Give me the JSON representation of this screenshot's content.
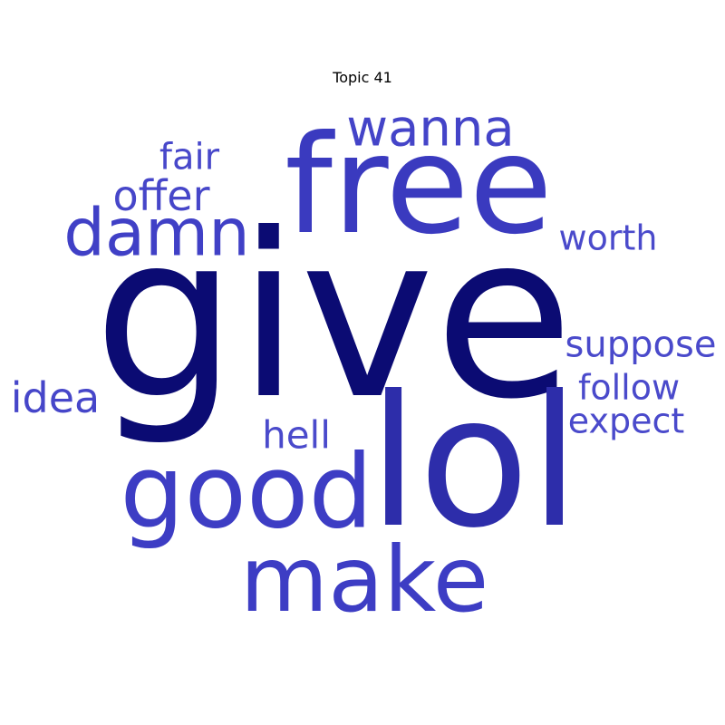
{
  "chart_data": {
    "type": "wordcloud",
    "title": "Topic 41",
    "words": [
      {
        "text": "give",
        "color": "#0b0b73"
      },
      {
        "text": "free",
        "color": "#3a3abf"
      },
      {
        "text": "lol",
        "color": "#2d2daa"
      },
      {
        "text": "good",
        "color": "#3d3dc4"
      },
      {
        "text": "make",
        "color": "#3d3dc4"
      },
      {
        "text": "damn",
        "color": "#4040c6"
      },
      {
        "text": "wanna",
        "color": "#4444c8"
      },
      {
        "text": "offer",
        "color": "#4646c9"
      },
      {
        "text": "fair",
        "color": "#4848ca"
      },
      {
        "text": "worth",
        "color": "#4a4acb"
      },
      {
        "text": "suppose",
        "color": "#4a4acb"
      },
      {
        "text": "idea",
        "color": "#4646c9"
      },
      {
        "text": "follow",
        "color": "#4a4acb"
      },
      {
        "text": "expect",
        "color": "#4a4acb"
      },
      {
        "text": "hell",
        "color": "#4a4acb"
      }
    ]
  }
}
